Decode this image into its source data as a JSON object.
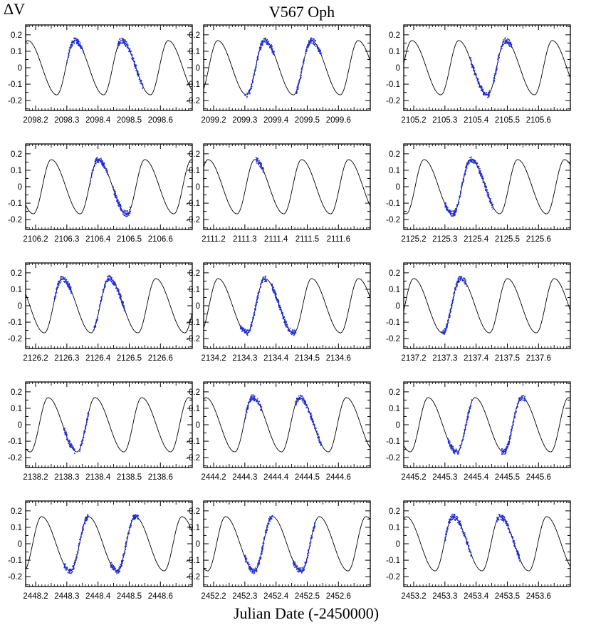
{
  "chart_data": {
    "type": "scatter",
    "title": "V567 Oph",
    "ylabel": "ΔV",
    "xlabel": "Julian Date (-2450000)",
    "ylim": [
      0.26,
      -0.26
    ],
    "y_ticks": [
      -0.2,
      -0.1,
      0,
      0.1,
      0.2
    ],
    "y_tick_labels": [
      "-0.2",
      "-0.1",
      "0",
      "0.1",
      "0.2"
    ],
    "model": {
      "amplitude": 0.165,
      "period": 0.15,
      "note_curve": "solid black model light curve"
    },
    "colors": {
      "observations": "#1f2bdc",
      "model": "#000000",
      "frame": "#000000"
    },
    "panels": [
      {
        "x_ticks": [
          "2098.2",
          "2098.3",
          "2098.4",
          "2098.5",
          "2098.6"
        ],
        "xlim": [
          2098.168,
          2098.702
        ],
        "phase0": 2098.418,
        "obs": [
          2098.3,
          2098.355,
          2098.462,
          2098.545
        ]
      },
      {
        "x_ticks": [
          "2099.2",
          "2099.3",
          "2099.4",
          "2099.5",
          "2099.6"
        ],
        "xlim": [
          2099.168,
          2099.702
        ],
        "phase0": 2099.306,
        "obs": [
          2099.3,
          2099.395,
          2099.465,
          2099.545
        ]
      },
      {
        "x_ticks": [
          "2105.2",
          "2105.3",
          "2105.4",
          "2105.5",
          "2105.6"
        ],
        "xlim": [
          2105.168,
          2105.702
        ],
        "phase0": 2105.437,
        "obs": [
          2105.38,
          2105.445,
          2105.455,
          2105.515
        ]
      },
      {
        "x_ticks": [
          "2106.2",
          "2106.3",
          "2106.4",
          "2106.5",
          "2106.6"
        ],
        "xlim": [
          2106.168,
          2106.702
        ],
        "phase0": 2106.493,
        "obs": [
          2106.375,
          2106.43,
          2106.445,
          2106.505
        ]
      },
      {
        "x_ticks": [
          "2111.2",
          "2111.3",
          "2111.4",
          "2111.5",
          "2111.6"
        ],
        "xlim": [
          2111.168,
          2111.702
        ],
        "phase0": 2111.275,
        "obs": [
          2111.335,
          2111.36
        ]
      },
      {
        "x_ticks": [
          "2125.2",
          "2125.3",
          "2125.4",
          "2125.5",
          "2125.6"
        ],
        "xlim": [
          2125.168,
          2125.702
        ],
        "phase0": 2125.326,
        "obs": [
          2125.3,
          2125.36,
          2125.36,
          2125.455
        ]
      },
      {
        "x_ticks": [
          "2126.2",
          "2126.3",
          "2126.4",
          "2126.5",
          "2126.6"
        ],
        "xlim": [
          2126.168,
          2126.702
        ],
        "phase0": 2126.378,
        "obs": [
          2126.26,
          2126.315,
          2126.385,
          2126.485
        ]
      },
      {
        "x_ticks": [
          "2134.2",
          "2134.3",
          "2134.4",
          "2134.5",
          "2134.6"
        ],
        "xlim": [
          2134.168,
          2134.702
        ],
        "phase0": 2134.307,
        "obs": [
          2134.285,
          2134.37,
          2134.385,
          2134.465
        ]
      },
      {
        "x_ticks": [
          "2137.2",
          "2137.3",
          "2137.4",
          "2137.5",
          "2137.6"
        ],
        "xlim": [
          2137.168,
          2137.702
        ],
        "phase0": 2137.293,
        "obs": [
          2137.29,
          2137.37
        ]
      },
      {
        "x_ticks": [
          "2138.2",
          "2138.3",
          "2138.4",
          "2138.5",
          "2138.6"
        ],
        "xlim": [
          2138.168,
          2138.702
        ],
        "phase0": 2138.333,
        "obs": [
          2138.29,
          2138.325,
          2138.34,
          2138.37
        ]
      },
      {
        "x_ticks": [
          "2444.2",
          "2444.3",
          "2444.4",
          "2444.5",
          "2444.6"
        ],
        "xlim": [
          2444.168,
          2444.702
        ],
        "phase0": 2444.418,
        "obs": [
          2444.3,
          2444.355,
          2444.462,
          2444.545
        ]
      },
      {
        "x_ticks": [
          "2445.2",
          "2445.3",
          "2445.4",
          "2445.5",
          "2445.6"
        ],
        "xlim": [
          2445.168,
          2445.702
        ],
        "phase0": 2445.489,
        "obs": [
          2445.31,
          2445.385,
          2445.48,
          2445.56
        ]
      },
      {
        "x_ticks": [
          "2448.2",
          "2448.3",
          "2448.4",
          "2448.5",
          "2448.6"
        ],
        "xlim": [
          2448.168,
          2448.702
        ],
        "phase0": 2448.462,
        "obs": [
          2448.29,
          2448.37,
          2448.44,
          2448.53
        ]
      },
      {
        "x_ticks": [
          "2452.2",
          "2452.3",
          "2452.4",
          "2452.5",
          "2452.6"
        ],
        "xlim": [
          2452.168,
          2452.702
        ],
        "phase0": 2452.331,
        "obs": [
          2452.3,
          2452.39,
          2452.455,
          2452.525
        ]
      },
      {
        "x_ticks": [
          "2453.2",
          "2453.3",
          "2453.4",
          "2453.5",
          "2453.6"
        ],
        "xlim": [
          2453.168,
          2453.702
        ],
        "phase0": 2453.419,
        "obs": [
          2453.3,
          2453.385,
          2453.465,
          2453.54
        ]
      }
    ]
  }
}
